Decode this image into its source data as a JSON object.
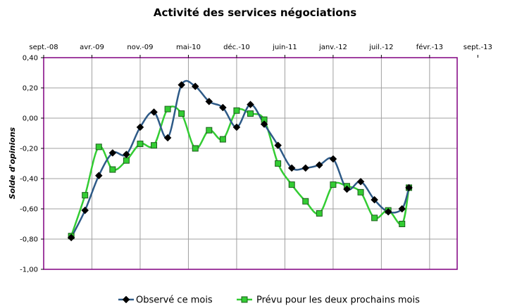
{
  "chart_data": {
    "type": "line",
    "title": "Activité des services négociations",
    "ylabel": "Solde d'opinions",
    "xlabel": "",
    "ylim": [
      -1.0,
      0.4
    ],
    "yticks": [
      -1.0,
      -0.8,
      -0.6,
      -0.4,
      -0.2,
      0.0,
      0.2,
      0.4
    ],
    "ytick_labels": [
      "-1,00",
      "-0,80",
      "-0,60",
      "-0,40",
      "-0,20",
      "0,00",
      "0,20",
      "0,40"
    ],
    "x_axis_position": "top",
    "xtick_labels": [
      "sept.-08",
      "avr.-09",
      "nov.-09",
      "mai-10",
      "déc.-10",
      "juin-11",
      "janv.-12",
      "juil.-12",
      "févr.-13",
      "sept.-13"
    ],
    "x_start": "2008-09",
    "x_end": "2013-09",
    "grid": true,
    "legend_position": "bottom",
    "series": [
      {
        "name": "Observé ce mois",
        "color": "#2e5a87",
        "marker": "diamond",
        "points": [
          [
            "2009-01",
            -0.79
          ],
          [
            "2009-03",
            -0.61
          ],
          [
            "2009-05",
            -0.38
          ],
          [
            "2009-07",
            -0.23
          ],
          [
            "2009-09",
            -0.24
          ],
          [
            "2009-11",
            -0.06
          ],
          [
            "2010-01",
            0.04
          ],
          [
            "2010-03",
            -0.13
          ],
          [
            "2010-05",
            0.22
          ],
          [
            "2010-07",
            0.21
          ],
          [
            "2010-09",
            0.11
          ],
          [
            "2010-11",
            0.07
          ],
          [
            "2011-01",
            -0.06
          ],
          [
            "2011-03",
            0.09
          ],
          [
            "2011-05",
            -0.04
          ],
          [
            "2011-07",
            -0.18
          ],
          [
            "2011-09",
            -0.33
          ],
          [
            "2011-11",
            -0.33
          ],
          [
            "2012-01",
            -0.31
          ],
          [
            "2012-03",
            -0.27
          ],
          [
            "2012-05",
            -0.47
          ],
          [
            "2012-07",
            -0.42
          ],
          [
            "2012-09",
            -0.54
          ],
          [
            "2012-11",
            -0.62
          ],
          [
            "2013-01",
            -0.6
          ],
          [
            "2013-02",
            -0.46
          ]
        ]
      },
      {
        "name": "Prévu pour les deux prochains mois",
        "color": "#33cc33",
        "marker": "square",
        "points": [
          [
            "2009-01",
            -0.78
          ],
          [
            "2009-03",
            -0.51
          ],
          [
            "2009-05",
            -0.19
          ],
          [
            "2009-07",
            -0.34
          ],
          [
            "2009-09",
            -0.28
          ],
          [
            "2009-11",
            -0.17
          ],
          [
            "2010-01",
            -0.18
          ],
          [
            "2010-03",
            0.06
          ],
          [
            "2010-05",
            0.03
          ],
          [
            "2010-07",
            -0.2
          ],
          [
            "2010-09",
            -0.08
          ],
          [
            "2010-11",
            -0.14
          ],
          [
            "2011-01",
            0.05
          ],
          [
            "2011-03",
            0.03
          ],
          [
            "2011-05",
            -0.01
          ],
          [
            "2011-07",
            -0.3
          ],
          [
            "2011-09",
            -0.44
          ],
          [
            "2011-11",
            -0.55
          ],
          [
            "2012-01",
            -0.63
          ],
          [
            "2012-03",
            -0.44
          ],
          [
            "2012-05",
            -0.45
          ],
          [
            "2012-07",
            -0.49
          ],
          [
            "2012-09",
            -0.66
          ],
          [
            "2012-11",
            -0.61
          ],
          [
            "2013-01",
            -0.7
          ],
          [
            "2013-02",
            -0.46
          ]
        ]
      }
    ]
  }
}
